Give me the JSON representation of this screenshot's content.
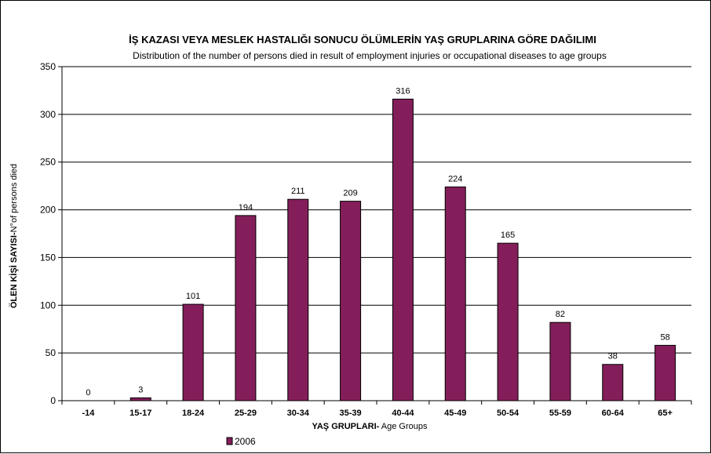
{
  "chart_data": {
    "type": "bar",
    "title": "İŞ KAZASI  VEYA MESLEK HASTALIĞI SONUCU ÖLÜMLERİN YAŞ GRUPLARINA GÖRE DAĞILIMI",
    "subtitle": "Distribution of the number of persons died in result of employment injuries or occupational diseases to age groups",
    "xlabel_bold": "YAŞ GRUPLARI-",
    "xlabel_rest": " Age Groups",
    "ylabel_bold": "ÖLEN KİŞİ SAYISI-",
    "ylabel_rest": "N°of persons died",
    "categories": [
      "-14",
      "15-17",
      "18-24",
      "25-29",
      "30-34",
      "35-39",
      "40-44",
      "45-49",
      "50-54",
      "55-59",
      "60-64",
      "65+"
    ],
    "series": [
      {
        "name": "2006",
        "values": [
          0,
          3,
          101,
          194,
          211,
          209,
          316,
          224,
          165,
          82,
          38,
          58
        ]
      }
    ],
    "ylim": [
      0,
      350
    ],
    "yticks": [
      0,
      50,
      100,
      150,
      200,
      250,
      300,
      350
    ],
    "grid": true,
    "legend": "bottom-left",
    "bar_color": "#841e5a"
  }
}
